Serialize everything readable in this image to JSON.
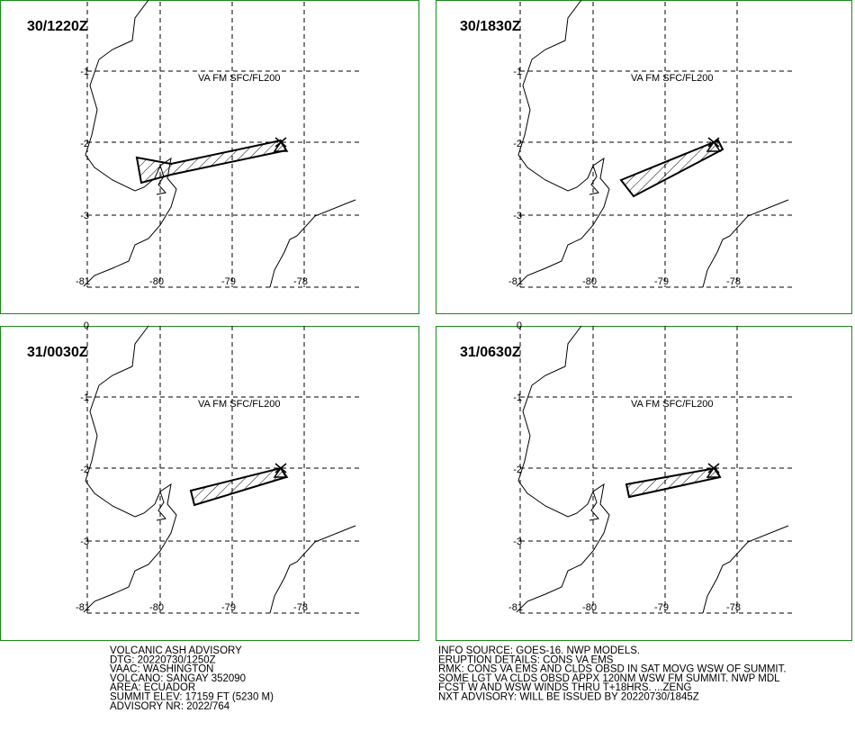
{
  "panels": [
    {
      "time": "30/1220Z",
      "va_label": "VA FM SFC/FL200",
      "lat_labels": [
        "-1",
        "-2",
        "-3"
      ],
      "lon_labels": [
        "-81",
        "-80",
        "-79",
        "-78"
      ]
    },
    {
      "time": "30/1830Z",
      "va_label": "VA FM SFC/FL200",
      "lat_labels": [
        "-1",
        "-2",
        "-3"
      ],
      "lon_labels": [
        "-81",
        "-80",
        "-79",
        "-78"
      ]
    },
    {
      "time": "31/0030Z",
      "va_label": "VA FM SFC/FL200",
      "lat_labels": [
        "0",
        "-1",
        "-2",
        "-3"
      ],
      "lon_labels": [
        "-81",
        "-80",
        "-79",
        "-78"
      ]
    },
    {
      "time": "31/0630Z",
      "va_label": "VA FM SFC/FL200",
      "lat_labels": [
        "0",
        "-1",
        "-2",
        "-3"
      ],
      "lon_labels": [
        "-81",
        "-80",
        "-79",
        "-78"
      ]
    }
  ],
  "advisory_left": [
    "VOLCANIC ASH ADVISORY",
    "DTG: 20220730/1250Z",
    "VAAC: WASHINGTON",
    "VOLCANO: SANGAY 352090",
    "AREA: ECUADOR",
    "SUMMIT ELEV: 17159 FT (5230 M)",
    "ADVISORY NR: 2022/764"
  ],
  "advisory_right": [
    "INFO SOURCE: GOES-16. NWP MODELS.",
    "ERUPTION DETAILS: CONS VA EMS",
    "RMK: CONS VA EMS AND CLDS OBSD IN SAT MOVG WSW OF SUMMIT.",
    "SOME LGT VA CLDS OBSD APPX 120NM WSW FM SUMMIT. NWP MDL",
    "FCST W AND WSW WINDS THRU T+18HRS. ...ZENG",
    "NXT ADVISORY: WILL BE ISSUED BY 20220730/1845Z"
  ]
}
